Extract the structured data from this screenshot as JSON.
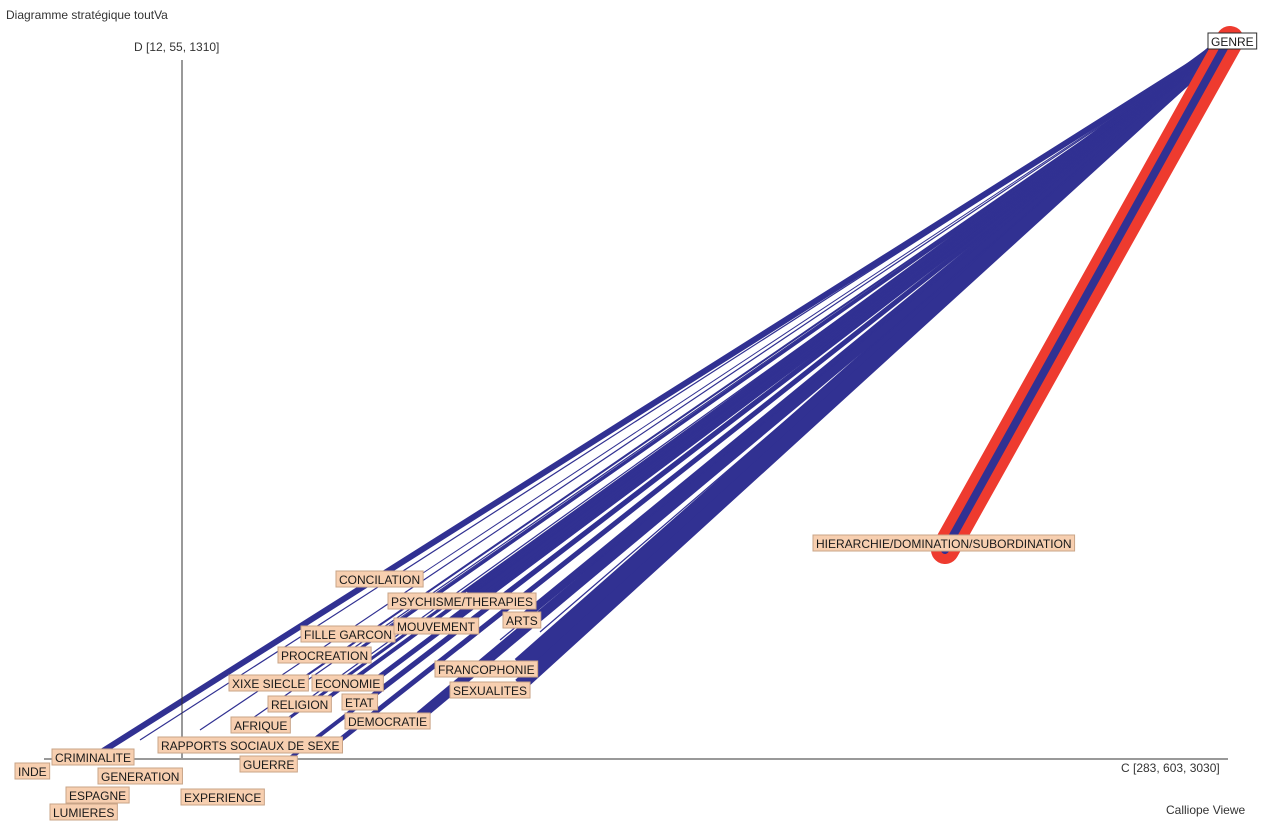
{
  "title": "Diagramme stratégique toutVa",
  "footer": "Calliope Viewe",
  "axes": {
    "x_label": "C [283, 603, 3030]",
    "y_label": "D [12, 55, 1310]"
  },
  "colors": {
    "link_blue": "#313192",
    "link_red": "#ee3b2f",
    "node_fill": "#f7cfb0",
    "axis": "#333333"
  },
  "hub": {
    "id": "genre",
    "label": "GENRE"
  },
  "nodes": [
    {
      "id": "hierarchie",
      "label": "HIERARCHIE/DOMINATION/SUBORDINATION"
    },
    {
      "id": "concilation",
      "label": "CONCILATION"
    },
    {
      "id": "psychisme",
      "label": "PSYCHISME/THERAPIES"
    },
    {
      "id": "arts",
      "label": "ARTS"
    },
    {
      "id": "fille-garcon",
      "label": "FILLE GARCON"
    },
    {
      "id": "mouvement",
      "label": "MOUVEMENT"
    },
    {
      "id": "procreation",
      "label": "PROCREATION"
    },
    {
      "id": "francophonie",
      "label": "FRANCOPHONIE"
    },
    {
      "id": "xixe-siecle",
      "label": "XIXE SIECLE"
    },
    {
      "id": "economie",
      "label": "ECONOMIE"
    },
    {
      "id": "sexualites",
      "label": "SEXUALITES"
    },
    {
      "id": "religion",
      "label": "RELIGION"
    },
    {
      "id": "etat",
      "label": "ETAT"
    },
    {
      "id": "democratie",
      "label": "DEMOCRATIE"
    },
    {
      "id": "afrique",
      "label": "AFRIQUE"
    },
    {
      "id": "rapports-sociaux",
      "label": "RAPPORTS SOCIAUX DE SEXE"
    },
    {
      "id": "criminalite",
      "label": "CRIMINALITE"
    },
    {
      "id": "guerre",
      "label": "GUERRE"
    },
    {
      "id": "inde",
      "label": "INDE"
    },
    {
      "id": "generation",
      "label": "GENERATION"
    },
    {
      "id": "espagne",
      "label": "ESPAGNE"
    },
    {
      "id": "experience",
      "label": "EXPERIENCE"
    },
    {
      "id": "lumieres",
      "label": "LUMIERES"
    }
  ]
}
